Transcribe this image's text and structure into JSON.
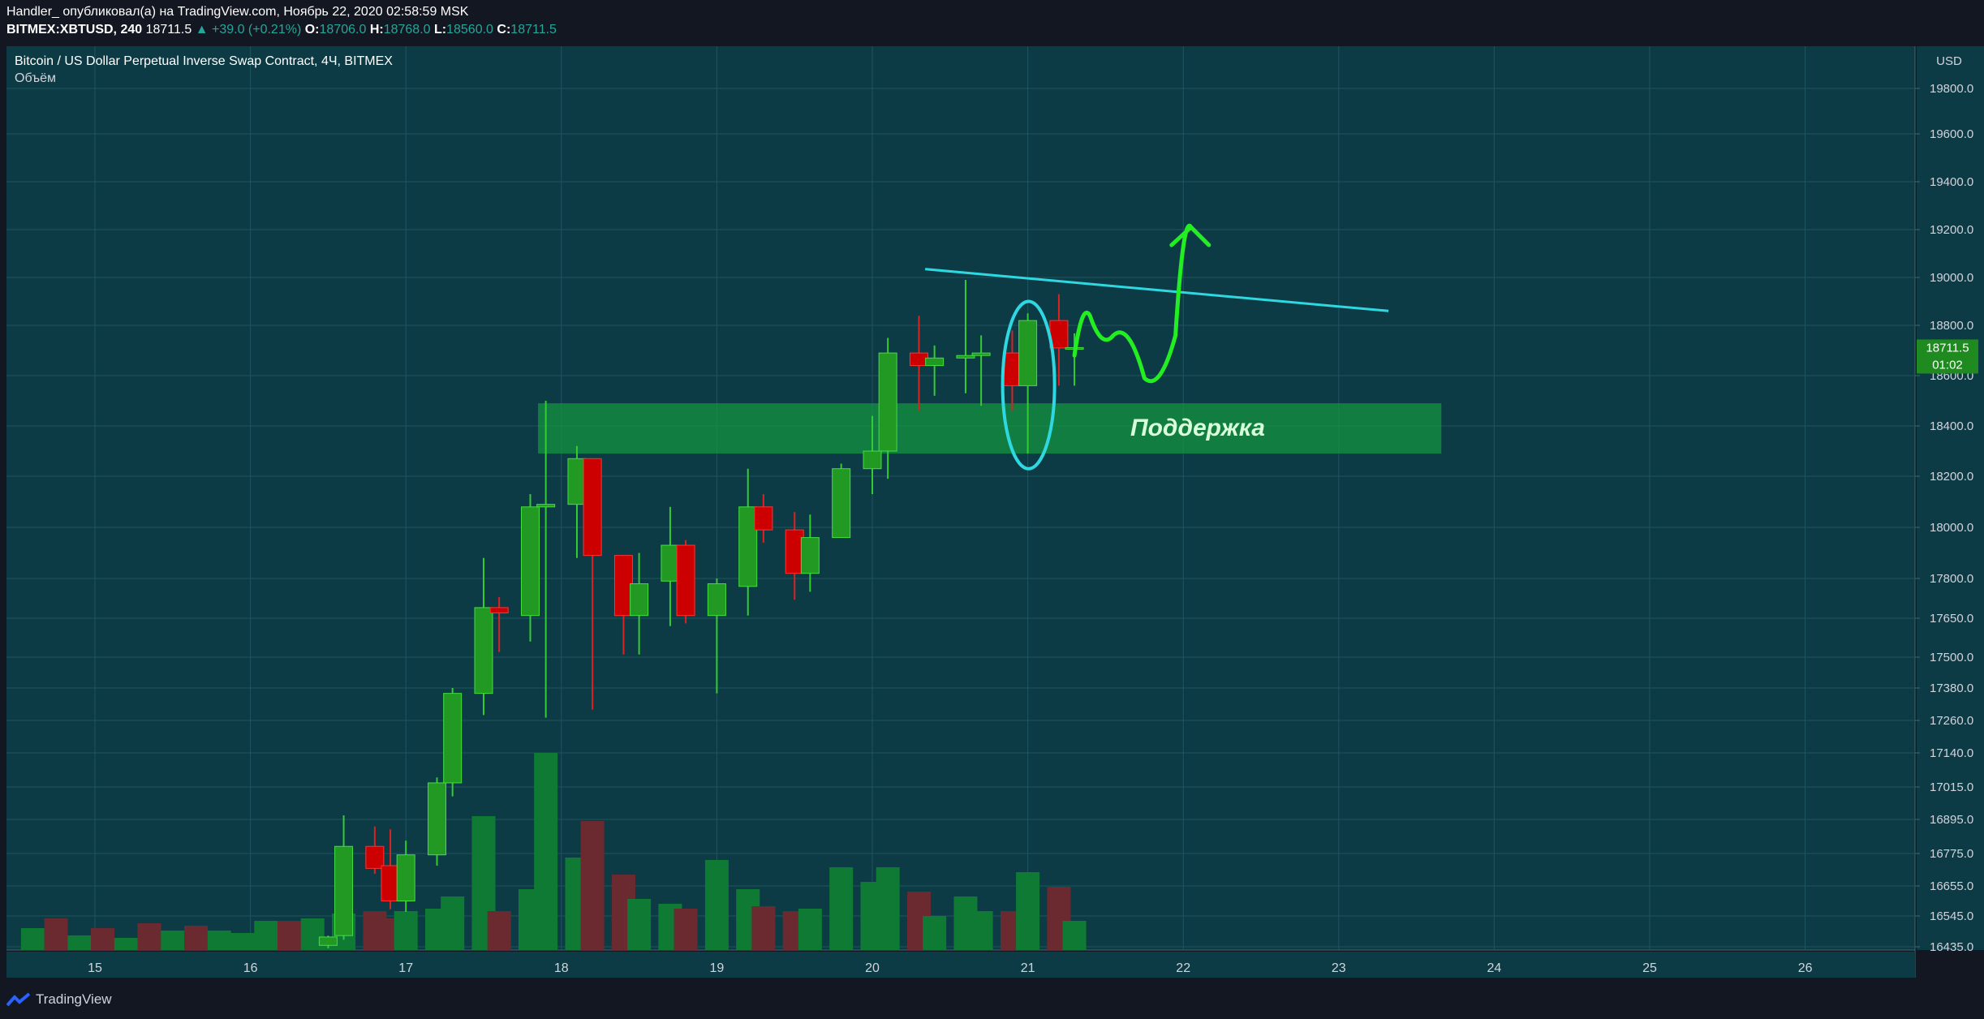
{
  "header": {
    "line1": "Handler_ опубликовал(а) на TradingView.com, Ноябрь 22, 2020 02:58:59 MSK",
    "symbol": "BITMEX:XBTUSD, 240",
    "last": "18711.5",
    "change": "▲ +39.0 (+0.21%)",
    "o_label": "O:",
    "o": "18706.0",
    "h_label": "H:",
    "h": "18768.0",
    "l_label": "L:",
    "l": "18560.0",
    "c_label": "C:",
    "c": "18711.5"
  },
  "legend": {
    "title": "Bitcoin / US Dollar Perpetual Inverse Swap Contract, 4Ч, BITMEX",
    "volume_label": "Объём"
  },
  "price_scale": {
    "currency": "USD",
    "last_price": "18711.5",
    "countdown": "01:02"
  },
  "annotation": {
    "support_label": "Поддержка"
  },
  "footer": {
    "brand": "TradingView"
  },
  "colors": {
    "bg": "#0d3b45",
    "grid": "#1f5560",
    "up": "#229922",
    "down": "#cc0000",
    "vol_up": "#0e7a34",
    "vol_down": "#6b2a30",
    "support_zone": "#149a40",
    "trendline": "#2fd8e0",
    "arrow": "#22ee22",
    "axis_text": "#d1d4dc"
  },
  "chart_data": {
    "type": "candlestick",
    "title": "Bitcoin / US Dollar Perpetual Inverse Swap Contract, 4Ч, BITMEX",
    "x_ticks": [
      "15",
      "16",
      "17",
      "18",
      "19",
      "20",
      "21",
      "22",
      "23",
      "24",
      "25",
      "26"
    ],
    "y_ticks": [
      "16435.0",
      "16545.0",
      "16655.0",
      "16775.0",
      "16895.0",
      "17015.0",
      "17140.0",
      "17260.0",
      "17380.0",
      "17500.0",
      "17650.0",
      "17800.0",
      "18000.0",
      "18200.0",
      "18400.0",
      "18600.0",
      "18800.0",
      "19000.0",
      "19200.0",
      "19400.0",
      "19600.0",
      "19800.0"
    ],
    "candles": [
      {
        "day": 16.5,
        "o": 16440,
        "h": 16475,
        "l": 16430,
        "c": 16470
      },
      {
        "day": 16.6,
        "o": 16475,
        "h": 16910,
        "l": 16460,
        "c": 16800
      },
      {
        "day": 16.8,
        "o": 16800,
        "h": 16870,
        "l": 16700,
        "c": 16720
      },
      {
        "day": 16.9,
        "o": 16730,
        "h": 16860,
        "l": 16570,
        "c": 16600
      },
      {
        "day": 17.0,
        "o": 16600,
        "h": 16820,
        "l": 16560,
        "c": 16770
      },
      {
        "day": 17.2,
        "o": 16770,
        "h": 17050,
        "l": 16730,
        "c": 17030
      },
      {
        "day": 17.3,
        "o": 17030,
        "h": 17380,
        "l": 16980,
        "c": 17360
      },
      {
        "day": 17.5,
        "o": 17360,
        "h": 17880,
        "l": 17280,
        "c": 17690
      },
      {
        "day": 17.6,
        "o": 17690,
        "h": 17730,
        "l": 17520,
        "c": 17670
      },
      {
        "day": 17.8,
        "o": 17660,
        "h": 18130,
        "l": 17560,
        "c": 18080
      },
      {
        "day": 17.9,
        "o": 18080,
        "h": 18500,
        "l": 17270,
        "c": 18090
      },
      {
        "day": 18.1,
        "o": 18090,
        "h": 18320,
        "l": 17880,
        "c": 18270
      },
      {
        "day": 18.2,
        "o": 18270,
        "h": 18270,
        "l": 17300,
        "c": 17890
      },
      {
        "day": 18.4,
        "o": 17890,
        "h": 17890,
        "l": 17510,
        "c": 17660
      },
      {
        "day": 18.5,
        "o": 17660,
        "h": 17900,
        "l": 17510,
        "c": 17780
      },
      {
        "day": 18.7,
        "o": 17790,
        "h": 18080,
        "l": 17620,
        "c": 17930
      },
      {
        "day": 18.8,
        "o": 17930,
        "h": 17950,
        "l": 17630,
        "c": 17660
      },
      {
        "day": 19.0,
        "o": 17660,
        "h": 17800,
        "l": 17360,
        "c": 17780
      },
      {
        "day": 19.2,
        "o": 17770,
        "h": 18230,
        "l": 17660,
        "c": 18080
      },
      {
        "day": 19.3,
        "o": 18080,
        "h": 18130,
        "l": 17940,
        "c": 17990
      },
      {
        "day": 19.5,
        "o": 17990,
        "h": 18060,
        "l": 17720,
        "c": 17820
      },
      {
        "day": 19.6,
        "o": 17820,
        "h": 18050,
        "l": 17750,
        "c": 17960
      },
      {
        "day": 19.8,
        "o": 17960,
        "h": 18250,
        "l": 17960,
        "c": 18230
      },
      {
        "day": 20.0,
        "o": 18230,
        "h": 18440,
        "l": 18130,
        "c": 18300
      },
      {
        "day": 20.1,
        "o": 18300,
        "h": 18750,
        "l": 18190,
        "c": 18690
      },
      {
        "day": 20.3,
        "o": 18690,
        "h": 18840,
        "l": 18460,
        "c": 18640
      },
      {
        "day": 20.4,
        "o": 18640,
        "h": 18720,
        "l": 18520,
        "c": 18670
      },
      {
        "day": 20.6,
        "o": 18670,
        "h": 18990,
        "l": 18530,
        "c": 18680
      },
      {
        "day": 20.7,
        "o": 18680,
        "h": 18760,
        "l": 18480,
        "c": 18690
      },
      {
        "day": 20.9,
        "o": 18690,
        "h": 18780,
        "l": 18460,
        "c": 18560
      },
      {
        "day": 21.0,
        "o": 18560,
        "h": 18850,
        "l": 18290,
        "c": 18820
      },
      {
        "day": 21.2,
        "o": 18820,
        "h": 18930,
        "l": 18560,
        "c": 18710
      },
      {
        "day": 21.3,
        "o": 18706,
        "h": 18768,
        "l": 18560,
        "c": 18711.5
      }
    ],
    "volume": [
      {
        "day": 14.6,
        "v": 0.09,
        "up": true
      },
      {
        "day": 14.75,
        "v": 0.13,
        "up": false
      },
      {
        "day": 14.9,
        "v": 0.06,
        "up": true
      },
      {
        "day": 15.05,
        "v": 0.09,
        "up": false
      },
      {
        "day": 15.2,
        "v": 0.05,
        "up": true
      },
      {
        "day": 15.35,
        "v": 0.11,
        "up": false
      },
      {
        "day": 15.5,
        "v": 0.08,
        "up": true
      },
      {
        "day": 15.65,
        "v": 0.1,
        "up": false
      },
      {
        "day": 15.8,
        "v": 0.08,
        "up": true
      },
      {
        "day": 15.95,
        "v": 0.07,
        "up": true
      },
      {
        "day": 16.1,
        "v": 0.12,
        "up": true
      },
      {
        "day": 16.25,
        "v": 0.12,
        "up": false
      },
      {
        "day": 16.4,
        "v": 0.13,
        "up": true
      },
      {
        "day": 16.5,
        "v": 0.03,
        "up": true
      },
      {
        "day": 16.6,
        "v": 0.15,
        "up": true
      },
      {
        "day": 16.8,
        "v": 0.16,
        "up": false
      },
      {
        "day": 16.9,
        "v": 0.13,
        "up": false
      },
      {
        "day": 17.0,
        "v": 0.16,
        "up": true
      },
      {
        "day": 17.2,
        "v": 0.17,
        "up": true
      },
      {
        "day": 17.3,
        "v": 0.22,
        "up": true
      },
      {
        "day": 17.5,
        "v": 0.55,
        "up": true
      },
      {
        "day": 17.6,
        "v": 0.16,
        "up": false
      },
      {
        "day": 17.8,
        "v": 0.25,
        "up": true
      },
      {
        "day": 17.9,
        "v": 0.81,
        "up": true
      },
      {
        "day": 18.1,
        "v": 0.38,
        "up": true
      },
      {
        "day": 18.2,
        "v": 0.53,
        "up": false
      },
      {
        "day": 18.4,
        "v": 0.31,
        "up": false
      },
      {
        "day": 18.5,
        "v": 0.21,
        "up": true
      },
      {
        "day": 18.7,
        "v": 0.19,
        "up": true
      },
      {
        "day": 18.8,
        "v": 0.17,
        "up": false
      },
      {
        "day": 19.0,
        "v": 0.37,
        "up": true
      },
      {
        "day": 19.2,
        "v": 0.25,
        "up": true
      },
      {
        "day": 19.3,
        "v": 0.18,
        "up": false
      },
      {
        "day": 19.5,
        "v": 0.16,
        "up": false
      },
      {
        "day": 19.6,
        "v": 0.17,
        "up": true
      },
      {
        "day": 19.8,
        "v": 0.34,
        "up": true
      },
      {
        "day": 20.0,
        "v": 0.28,
        "up": true
      },
      {
        "day": 20.1,
        "v": 0.34,
        "up": true
      },
      {
        "day": 20.3,
        "v": 0.24,
        "up": false
      },
      {
        "day": 20.4,
        "v": 0.14,
        "up": true
      },
      {
        "day": 20.6,
        "v": 0.22,
        "up": true
      },
      {
        "day": 20.7,
        "v": 0.16,
        "up": true
      },
      {
        "day": 20.9,
        "v": 0.16,
        "up": false
      },
      {
        "day": 21.0,
        "v": 0.32,
        "up": true
      },
      {
        "day": 21.2,
        "v": 0.26,
        "up": false
      },
      {
        "day": 21.3,
        "v": 0.12,
        "up": true
      }
    ],
    "drawings": {
      "support_zone": {
        "y_low": 18290,
        "y_high": 18490,
        "x_from": 17.85,
        "x_to": 23.66
      },
      "trendline": {
        "x1": 20.34,
        "y1": 19035,
        "x2": 23.32,
        "y2": 18860
      },
      "ellipse": {
        "day": 21.0,
        "y_low": 18230,
        "y_high": 18900
      },
      "forecast_path": [
        [
          21.3,
          18680
        ],
        [
          21.4,
          18840
        ],
        [
          21.55,
          18760
        ],
        [
          21.75,
          18590
        ],
        [
          21.95,
          18760
        ],
        [
          22.05,
          19210
        ]
      ]
    }
  }
}
